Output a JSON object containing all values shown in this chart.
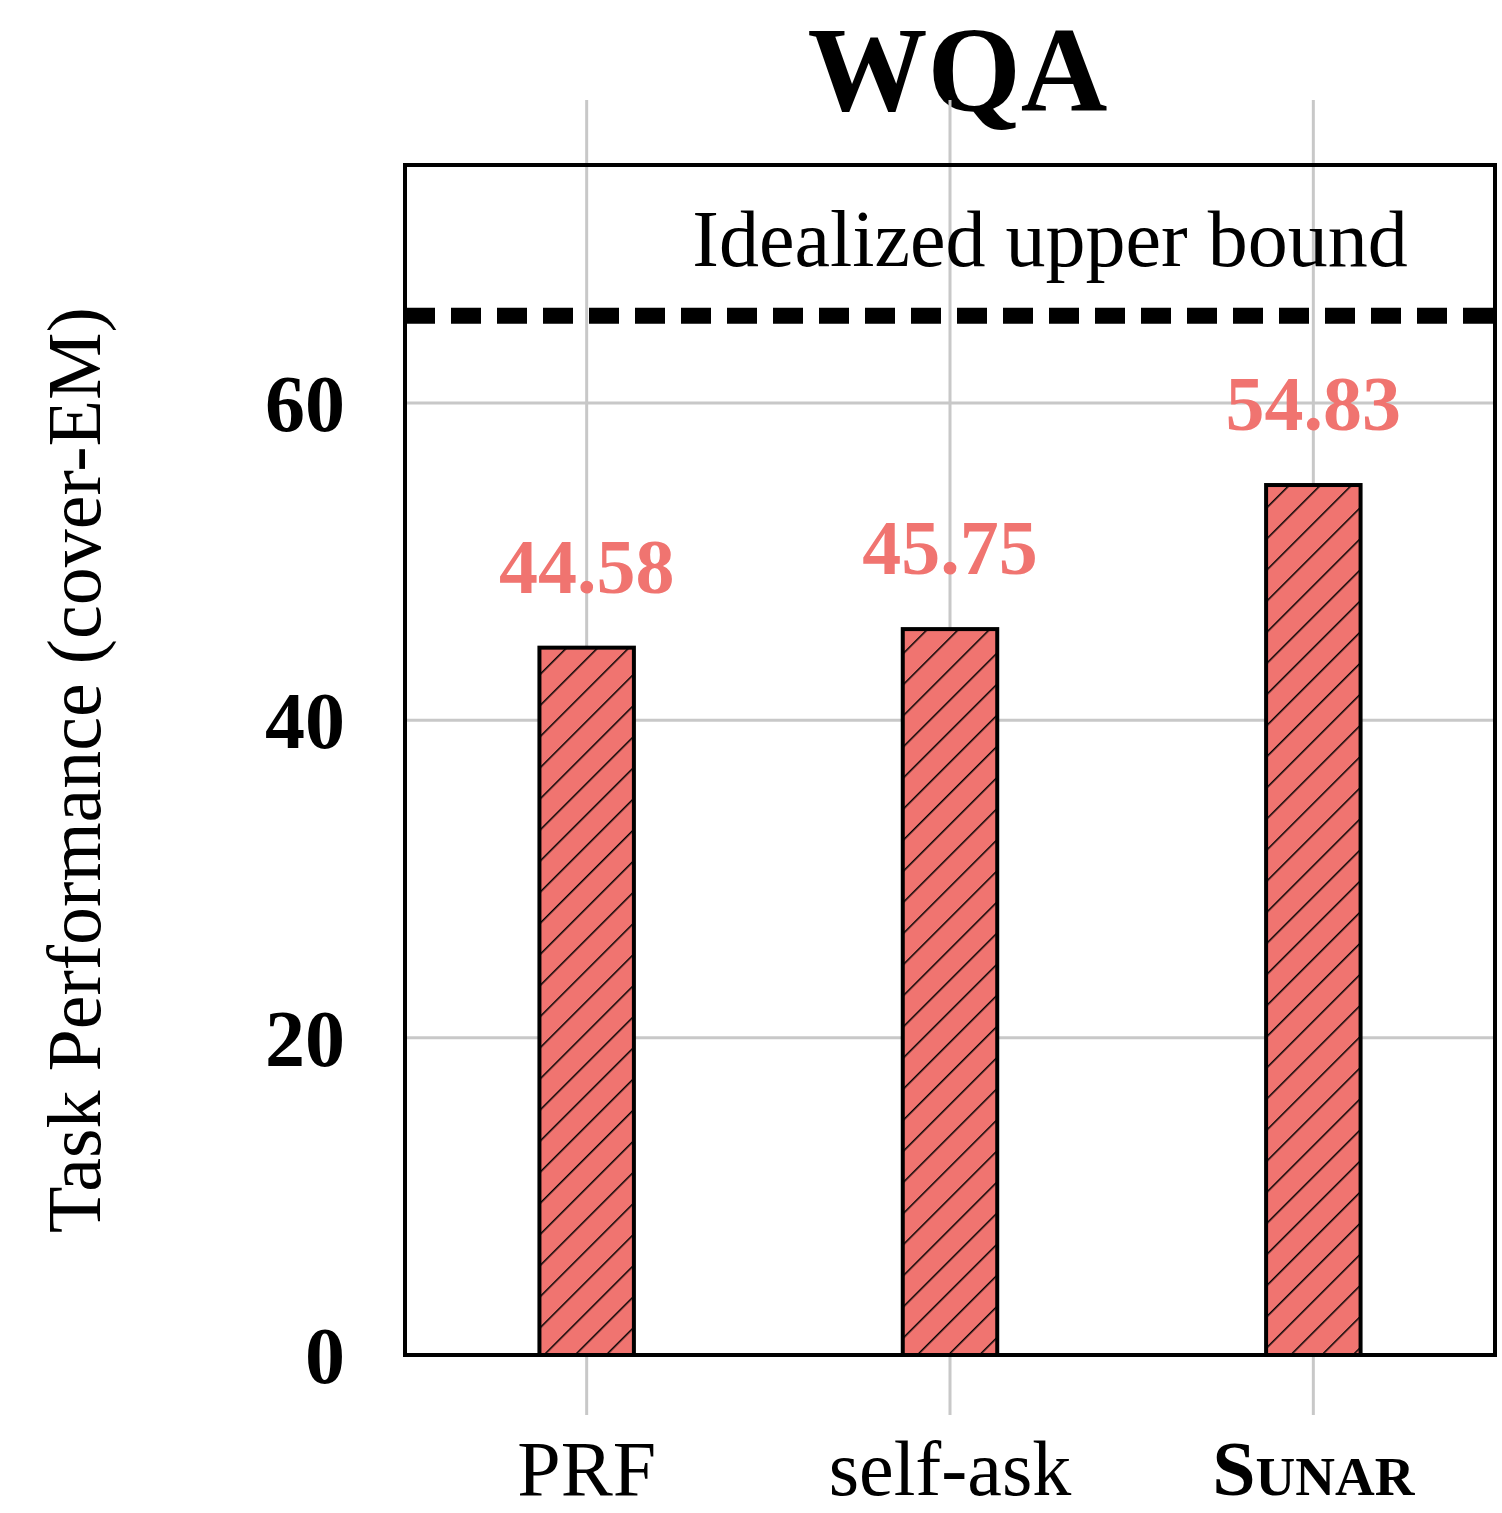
{
  "chart_data": {
    "type": "bar",
    "title": "WQA",
    "ylabel": "Task Performance (cover-EM)",
    "categories": [
      "PRF",
      "self-ask",
      "Sunar"
    ],
    "values": [
      44.58,
      45.75,
      54.83
    ],
    "color": "#f07470",
    "data_labels": true,
    "ylim": [
      0,
      75
    ],
    "yticks": [
      0,
      20,
      40,
      60
    ],
    "grid": true,
    "ref_lines": [
      {
        "axis": "y",
        "value": 65.5,
        "label": "Idealized upper bound",
        "line_style": "dashed",
        "color": "#000000"
      }
    ]
  }
}
